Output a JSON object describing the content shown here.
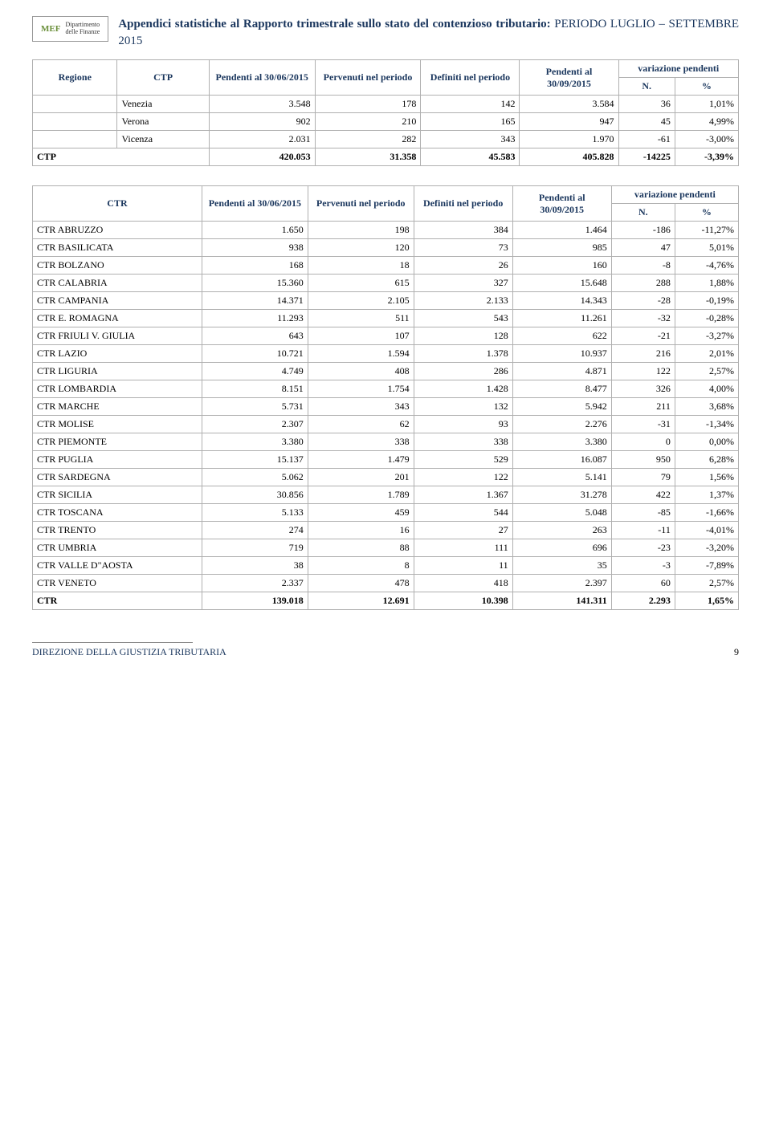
{
  "header": {
    "logo_mark": "MEF",
    "logo_dept": "Dipartimento\ndelle Finanze",
    "title_bold": "Appendici statistiche al Rapporto trimestrale sullo stato del contenzioso tributario:",
    "title_rest": " PERIODO LUGLIO – SETTEMBRE 2015"
  },
  "colors": {
    "header_text": "#1a365d",
    "border": "#b0b0b0",
    "text": "#000000",
    "bg": "#ffffff"
  },
  "table1": {
    "columns": [
      "Regione",
      "CTP",
      "Pendenti al 30/06/2015",
      "Pervenuti nel periodo",
      "Definiti nel periodo",
      "Pendenti al 30/09/2015",
      "N.",
      "%"
    ],
    "var_header": "variazione pendenti",
    "rows": [
      {
        "region": "",
        "ctp": "Venezia",
        "c1": "3.548",
        "c2": "178",
        "c3": "142",
        "c4": "3.584",
        "c5": "36",
        "c6": "1,01%"
      },
      {
        "region": "",
        "ctp": "Verona",
        "c1": "902",
        "c2": "210",
        "c3": "165",
        "c4": "947",
        "c5": "45",
        "c6": "4,99%"
      },
      {
        "region": "",
        "ctp": "Vicenza",
        "c1": "2.031",
        "c2": "282",
        "c3": "343",
        "c4": "1.970",
        "c5": "-61",
        "c6": "-3,00%"
      }
    ],
    "total": {
      "label": "CTP",
      "c1": "420.053",
      "c2": "31.358",
      "c3": "45.583",
      "c4": "405.828",
      "c5": "-14225",
      "c6": "-3,39%"
    }
  },
  "table2": {
    "columns": [
      "CTR",
      "Pendenti al 30/06/2015",
      "Pervenuti nel periodo",
      "Definiti nel periodo",
      "Pendenti al 30/09/2015",
      "N.",
      "%"
    ],
    "var_header": "variazione pendenti",
    "rows": [
      {
        "name": "CTR ABRUZZO",
        "c1": "1.650",
        "c2": "198",
        "c3": "384",
        "c4": "1.464",
        "c5": "-186",
        "c6": "-11,27%"
      },
      {
        "name": "CTR BASILICATA",
        "c1": "938",
        "c2": "120",
        "c3": "73",
        "c4": "985",
        "c5": "47",
        "c6": "5,01%"
      },
      {
        "name": "CTR BOLZANO",
        "c1": "168",
        "c2": "18",
        "c3": "26",
        "c4": "160",
        "c5": "-8",
        "c6": "-4,76%"
      },
      {
        "name": "CTR CALABRIA",
        "c1": "15.360",
        "c2": "615",
        "c3": "327",
        "c4": "15.648",
        "c5": "288",
        "c6": "1,88%"
      },
      {
        "name": "CTR CAMPANIA",
        "c1": "14.371",
        "c2": "2.105",
        "c3": "2.133",
        "c4": "14.343",
        "c5": "-28",
        "c6": "-0,19%"
      },
      {
        "name": "CTR E. ROMAGNA",
        "c1": "11.293",
        "c2": "511",
        "c3": "543",
        "c4": "11.261",
        "c5": "-32",
        "c6": "-0,28%"
      },
      {
        "name": "CTR FRIULI V. GIULIA",
        "c1": "643",
        "c2": "107",
        "c3": "128",
        "c4": "622",
        "c5": "-21",
        "c6": "-3,27%"
      },
      {
        "name": "CTR LAZIO",
        "c1": "10.721",
        "c2": "1.594",
        "c3": "1.378",
        "c4": "10.937",
        "c5": "216",
        "c6": "2,01%"
      },
      {
        "name": "CTR LIGURIA",
        "c1": "4.749",
        "c2": "408",
        "c3": "286",
        "c4": "4.871",
        "c5": "122",
        "c6": "2,57%"
      },
      {
        "name": "CTR LOMBARDIA",
        "c1": "8.151",
        "c2": "1.754",
        "c3": "1.428",
        "c4": "8.477",
        "c5": "326",
        "c6": "4,00%"
      },
      {
        "name": "CTR MARCHE",
        "c1": "5.731",
        "c2": "343",
        "c3": "132",
        "c4": "5.942",
        "c5": "211",
        "c6": "3,68%"
      },
      {
        "name": "CTR MOLISE",
        "c1": "2.307",
        "c2": "62",
        "c3": "93",
        "c4": "2.276",
        "c5": "-31",
        "c6": "-1,34%"
      },
      {
        "name": "CTR PIEMONTE",
        "c1": "3.380",
        "c2": "338",
        "c3": "338",
        "c4": "3.380",
        "c5": "0",
        "c6": "0,00%"
      },
      {
        "name": "CTR PUGLIA",
        "c1": "15.137",
        "c2": "1.479",
        "c3": "529",
        "c4": "16.087",
        "c5": "950",
        "c6": "6,28%"
      },
      {
        "name": "CTR SARDEGNA",
        "c1": "5.062",
        "c2": "201",
        "c3": "122",
        "c4": "5.141",
        "c5": "79",
        "c6": "1,56%"
      },
      {
        "name": "CTR SICILIA",
        "c1": "30.856",
        "c2": "1.789",
        "c3": "1.367",
        "c4": "31.278",
        "c5": "422",
        "c6": "1,37%"
      },
      {
        "name": "CTR TOSCANA",
        "c1": "5.133",
        "c2": "459",
        "c3": "544",
        "c4": "5.048",
        "c5": "-85",
        "c6": "-1,66%"
      },
      {
        "name": "CTR TRENTO",
        "c1": "274",
        "c2": "16",
        "c3": "27",
        "c4": "263",
        "c5": "-11",
        "c6": "-4,01%"
      },
      {
        "name": "CTR UMBRIA",
        "c1": "719",
        "c2": "88",
        "c3": "111",
        "c4": "696",
        "c5": "-23",
        "c6": "-3,20%"
      },
      {
        "name": "CTR VALLE D\"AOSTA",
        "c1": "38",
        "c2": "8",
        "c3": "11",
        "c4": "35",
        "c5": "-3",
        "c6": "-7,89%"
      },
      {
        "name": "CTR VENETO",
        "c1": "2.337",
        "c2": "478",
        "c3": "418",
        "c4": "2.397",
        "c5": "60",
        "c6": "2,57%"
      }
    ],
    "total": {
      "name": "CTR",
      "c1": "139.018",
      "c2": "12.691",
      "c3": "10.398",
      "c4": "141.311",
      "c5": "2.293",
      "c6": "1,65%"
    }
  },
  "footer": {
    "left": "DIREZIONE DELLA GIUSTIZIA TRIBUTARIA",
    "page": "9"
  }
}
